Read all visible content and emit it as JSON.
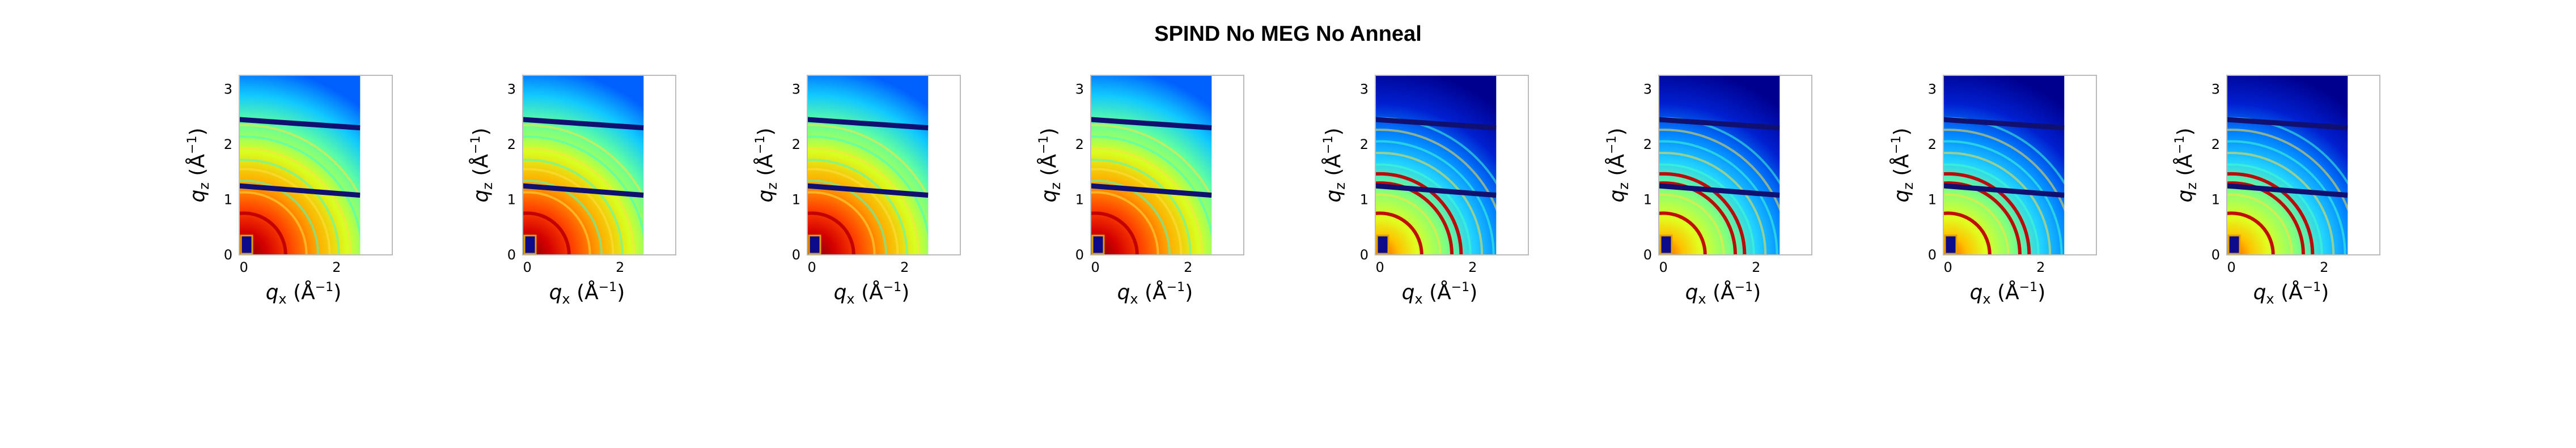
{
  "figure": {
    "title": "SPIND No MEG No Anneal"
  },
  "chart_data": {
    "type": "heatmap",
    "title": "SPIND No MEG No Anneal",
    "colormap": "jet",
    "panels": [
      {
        "xlabel_var": "q",
        "xlabel_sub": "x",
        "xlabel_unit": " (Å",
        "xlabel_exp": "−1",
        "xlabel_close": ")",
        "ylabel_var": "q",
        "ylabel_sub": "z",
        "ylabel_unit": " (Å",
        "ylabel_exp": "−1",
        "ylabel_close": ")",
        "x_ticks": [
          "0",
          "2"
        ],
        "y_ticks": [
          "0",
          "1",
          "2",
          "3"
        ],
        "xlim": [
          -0.1,
          3.2
        ],
        "ylim": [
          0,
          3.25
        ],
        "intensity": 1.0
      },
      {
        "xlabel_var": "q",
        "xlabel_sub": "x",
        "xlabel_unit": " (Å",
        "xlabel_exp": "−1",
        "xlabel_close": ")",
        "ylabel_var": "q",
        "ylabel_sub": "z",
        "ylabel_unit": " (Å",
        "ylabel_exp": "−1",
        "ylabel_close": ")",
        "x_ticks": [
          "0",
          "2"
        ],
        "y_ticks": [
          "0",
          "1",
          "2",
          "3"
        ],
        "xlim": [
          -0.1,
          3.2
        ],
        "ylim": [
          0,
          3.25
        ],
        "intensity": 0.95
      },
      {
        "xlabel_var": "q",
        "xlabel_sub": "x",
        "xlabel_unit": " (Å",
        "xlabel_exp": "−1",
        "xlabel_close": ")",
        "ylabel_var": "q",
        "ylabel_sub": "z",
        "ylabel_unit": " (Å",
        "ylabel_exp": "−1",
        "ylabel_close": ")",
        "x_ticks": [
          "0",
          "2"
        ],
        "y_ticks": [
          "0",
          "1",
          "2",
          "3"
        ],
        "xlim": [
          -0.1,
          3.2
        ],
        "ylim": [
          0,
          3.25
        ],
        "intensity": 0.9
      },
      {
        "xlabel_var": "q",
        "xlabel_sub": "x",
        "xlabel_unit": " (Å",
        "xlabel_exp": "−1",
        "xlabel_close": ")",
        "ylabel_var": "q",
        "ylabel_sub": "z",
        "ylabel_unit": " (Å",
        "ylabel_exp": "−1",
        "ylabel_close": ")",
        "x_ticks": [
          "0",
          "2"
        ],
        "y_ticks": [
          "0",
          "1",
          "2",
          "3"
        ],
        "xlim": [
          -0.1,
          3.2
        ],
        "ylim": [
          0,
          3.25
        ],
        "intensity": 0.85
      },
      {
        "xlabel_var": "q",
        "xlabel_sub": "x",
        "xlabel_unit": " (Å",
        "xlabel_exp": "−1",
        "xlabel_close": ")",
        "ylabel_var": "q",
        "ylabel_sub": "z",
        "ylabel_unit": " (Å",
        "ylabel_exp": "−1",
        "ylabel_close": ")",
        "x_ticks": [
          "0",
          "2"
        ],
        "y_ticks": [
          "0",
          "1",
          "2",
          "3"
        ],
        "xlim": [
          -0.1,
          3.2
        ],
        "ylim": [
          0,
          3.25
        ],
        "intensity": 0.7
      },
      {
        "xlabel_var": "q",
        "xlabel_sub": "x",
        "xlabel_unit": " (Å",
        "xlabel_exp": "−1",
        "xlabel_close": ")",
        "ylabel_var": "q",
        "ylabel_sub": "z",
        "ylabel_unit": " (Å",
        "ylabel_exp": "−1",
        "ylabel_close": ")",
        "x_ticks": [
          "0",
          "2"
        ],
        "y_ticks": [
          "0",
          "1",
          "2",
          "3"
        ],
        "xlim": [
          -0.1,
          3.2
        ],
        "ylim": [
          0,
          3.25
        ],
        "intensity": 0.6
      },
      {
        "xlabel_var": "q",
        "xlabel_sub": "x",
        "xlabel_unit": " (Å",
        "xlabel_exp": "−1",
        "xlabel_close": ")",
        "ylabel_var": "q",
        "ylabel_sub": "z",
        "ylabel_unit": " (Å",
        "ylabel_exp": "−1",
        "ylabel_close": ")",
        "x_ticks": [
          "0",
          "2"
        ],
        "y_ticks": [
          "0",
          "1",
          "2",
          "3"
        ],
        "xlim": [
          -0.1,
          3.2
        ],
        "ylim": [
          0,
          3.25
        ],
        "intensity": 0.6
      },
      {
        "xlabel_var": "q",
        "xlabel_sub": "x",
        "xlabel_unit": " (Å",
        "xlabel_exp": "−1",
        "xlabel_close": ")",
        "ylabel_var": "q",
        "ylabel_sub": "z",
        "ylabel_unit": " (Å",
        "ylabel_exp": "−1",
        "ylabel_close": ")",
        "x_ticks": [
          "0",
          "2"
        ],
        "y_ticks": [
          "0",
          "1",
          "2",
          "3"
        ],
        "xlim": [
          -0.1,
          3.2
        ],
        "ylim": [
          0,
          3.25
        ],
        "intensity": 0.6
      }
    ]
  }
}
